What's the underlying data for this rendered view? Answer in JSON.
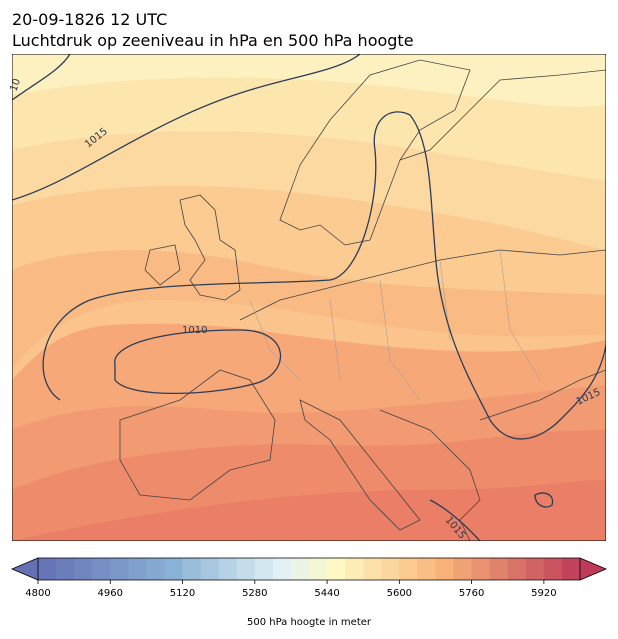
{
  "title": "20-09-1826 12 UTC",
  "subtitle": "Luchtdruk op zeeniveau in hPa en 500 hPa hoogte",
  "map": {
    "contour_labels": [
      "10",
      "1015",
      "1010",
      "1015",
      "1015"
    ]
  },
  "colorbar": {
    "label": "500 hPa hoogte in meter",
    "lim": [
      4800,
      6000
    ],
    "step": 40,
    "ticks": [
      4800,
      4960,
      5120,
      5280,
      5440,
      5600,
      5760,
      5920
    ]
  }
}
